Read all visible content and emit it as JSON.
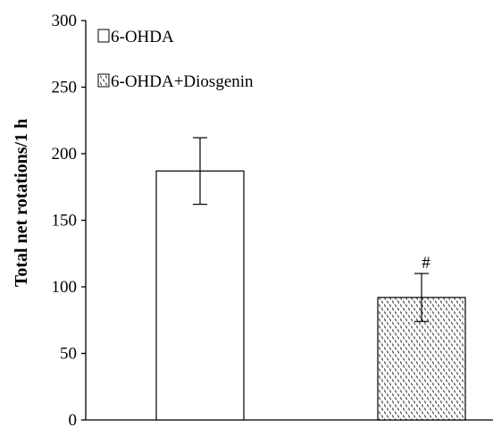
{
  "chart_data": {
    "type": "bar",
    "ylabel": "Total net rotations/1 h",
    "xlabel": "",
    "ylim": [
      0,
      300
    ],
    "yticks": [
      0,
      50,
      100,
      150,
      200,
      250,
      300
    ],
    "series": [
      {
        "name": "6-OHDA",
        "value": 187,
        "error": 25,
        "fill": "white",
        "annotation": ""
      },
      {
        "name": "6-OHDA+Diosgenin",
        "value": 92,
        "error": 18,
        "fill": "dotted",
        "annotation": "#"
      }
    ],
    "legend_position": "top-left",
    "grid": false,
    "colors": {
      "axis": "#000000",
      "bar_stroke": "#000000",
      "bar_fill": "#ffffff"
    }
  }
}
